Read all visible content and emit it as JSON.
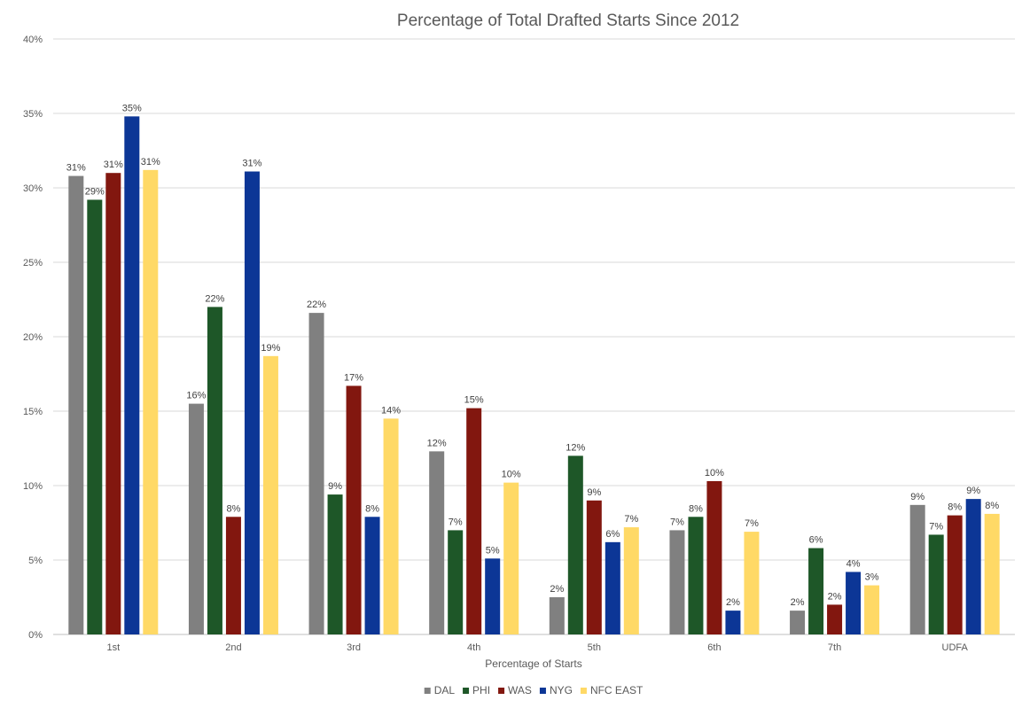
{
  "chart_data": {
    "type": "bar",
    "title": "Percentage of Total Drafted Starts Since 2012",
    "xlabel": "Percentage of Starts",
    "ylabel": "",
    "ylim": [
      0,
      40
    ],
    "y_ticks": [
      0,
      5,
      10,
      15,
      20,
      25,
      30,
      35,
      40
    ],
    "y_tick_suffix": "%",
    "grid": true,
    "legend_position": "bottom",
    "categories": [
      "1st",
      "2nd",
      "3rd",
      "4th",
      "5th",
      "6th",
      "7th",
      "UDFA"
    ],
    "series": [
      {
        "name": "DAL",
        "color": "#808080",
        "values": [
          30.8,
          15.5,
          21.6,
          12.3,
          2.5,
          7.0,
          1.6,
          8.7
        ],
        "labels": [
          "31%",
          "16%",
          "22%",
          "12%",
          "2%",
          "7%",
          "2%",
          "9%"
        ]
      },
      {
        "name": "PHI",
        "color": "#1e5728",
        "values": [
          29.2,
          22.0,
          9.4,
          7.0,
          12.0,
          7.9,
          5.8,
          6.7
        ],
        "labels": [
          "29%",
          "22%",
          "9%",
          "7%",
          "12%",
          "8%",
          "6%",
          "7%"
        ]
      },
      {
        "name": "WAS",
        "color": "#82170f",
        "values": [
          31.0,
          7.9,
          16.7,
          15.2,
          9.0,
          10.3,
          2.0,
          8.0
        ],
        "labels": [
          "31%",
          "8%",
          "17%",
          "15%",
          "9%",
          "10%",
          "2%",
          "8%"
        ]
      },
      {
        "name": "NYG",
        "color": "#0c3696",
        "values": [
          34.8,
          31.1,
          7.9,
          5.1,
          6.2,
          1.6,
          4.2,
          9.1
        ],
        "labels": [
          "35%",
          "31%",
          "8%",
          "5%",
          "6%",
          "2%",
          "4%",
          "9%"
        ]
      },
      {
        "name": "NFC EAST",
        "color": "#ffd966",
        "values": [
          31.2,
          18.7,
          14.5,
          10.2,
          7.2,
          6.9,
          3.3,
          8.1
        ],
        "labels": [
          "31%",
          "19%",
          "14%",
          "10%",
          "7%",
          "7%",
          "3%",
          "8%"
        ]
      }
    ]
  }
}
